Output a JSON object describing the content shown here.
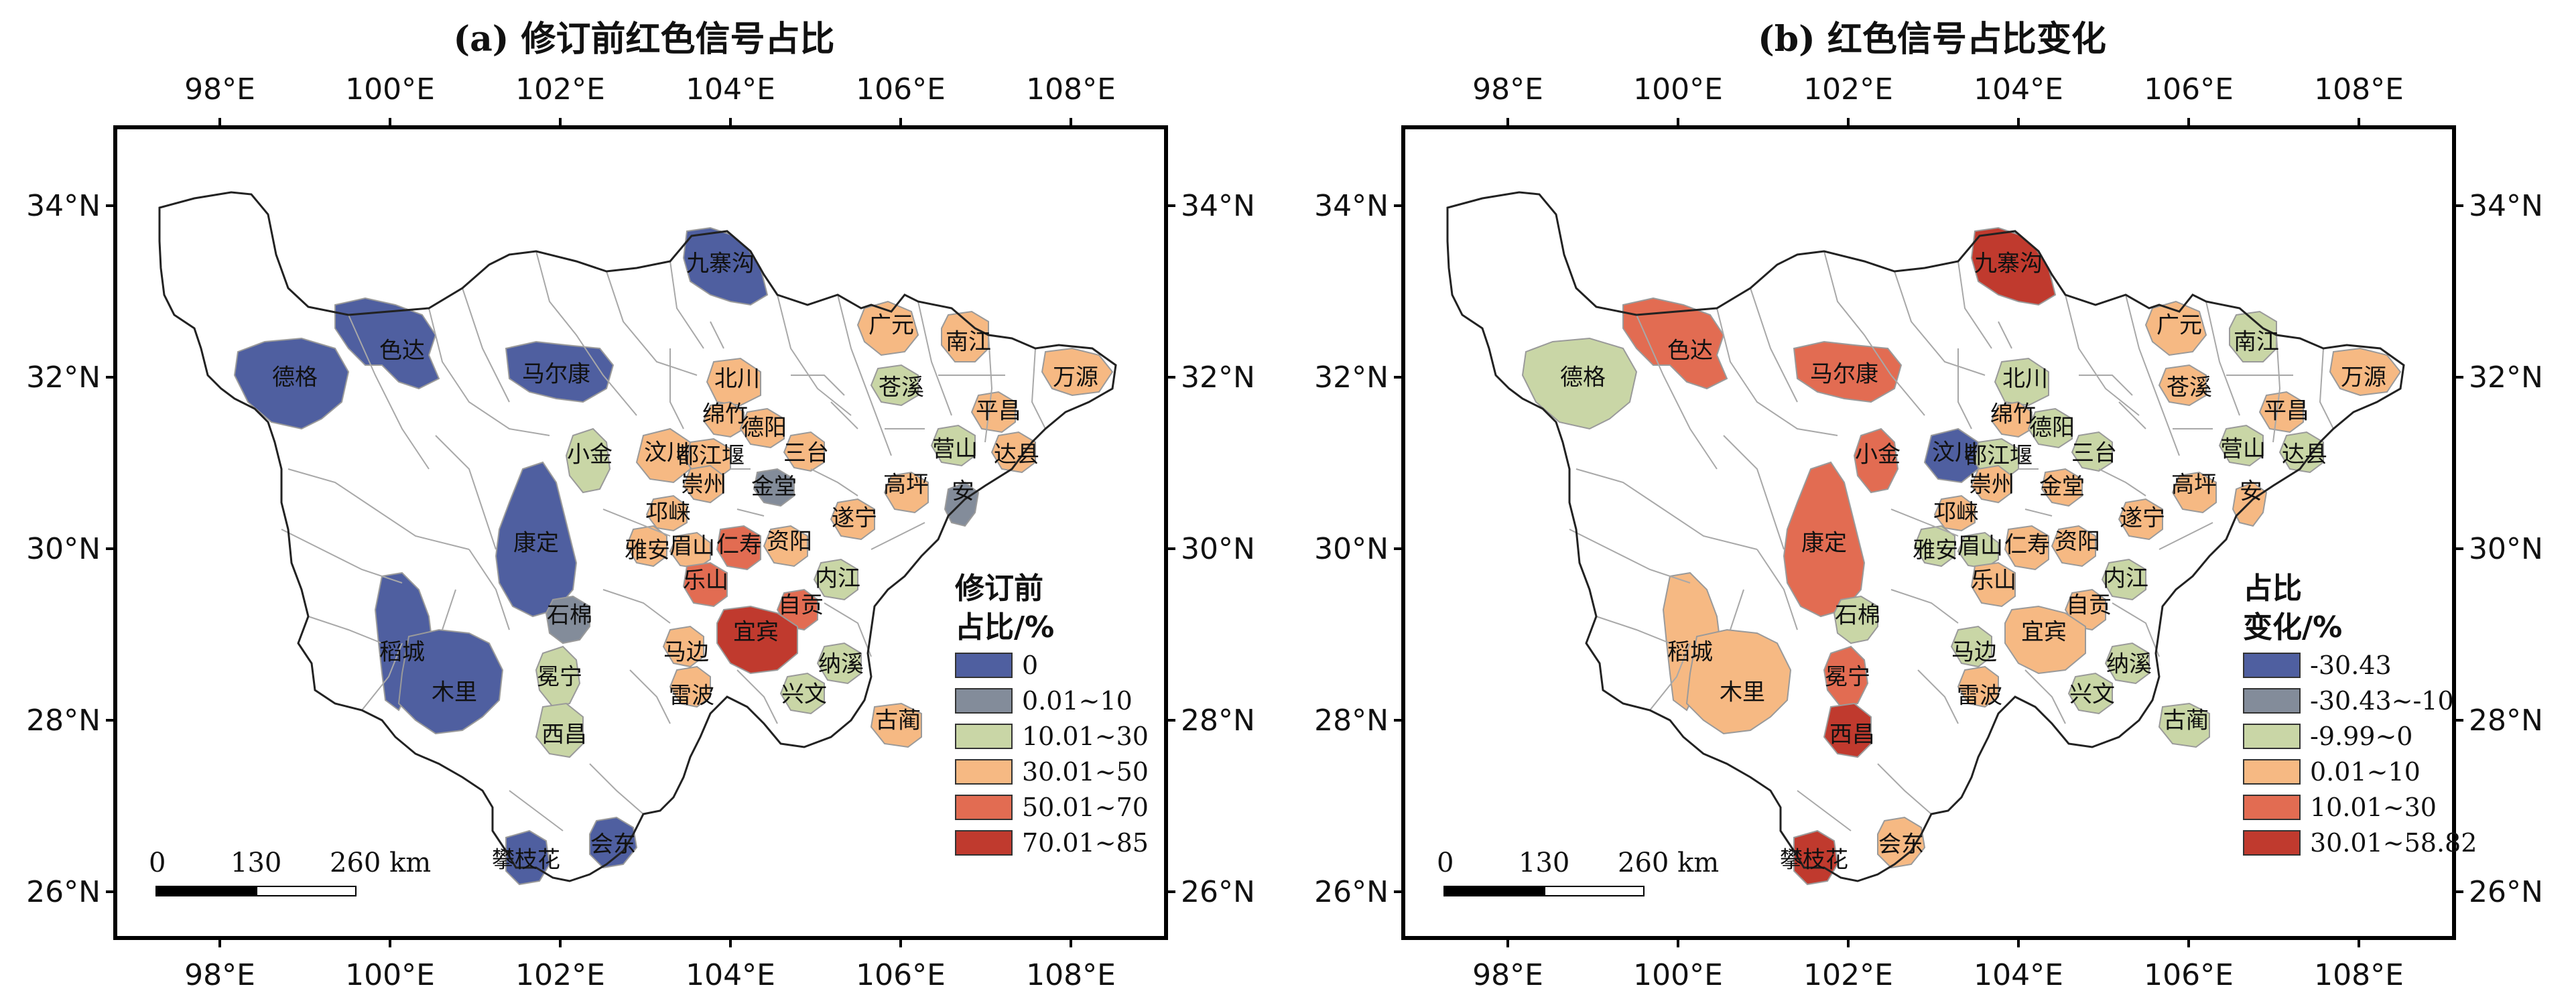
{
  "axis_labels": {
    "lon": [
      "98°E",
      "100°E",
      "102°E",
      "104°E",
      "106°E",
      "108°E"
    ],
    "lat": [
      "34°N",
      "32°N",
      "30°N",
      "28°N",
      "26°N"
    ]
  },
  "scalebar": {
    "ticks": [
      "0",
      "130",
      "260 km"
    ]
  },
  "panels": [
    {
      "title": "(a) 修订前红色信号占比",
      "legend": {
        "title_line1": "修订前",
        "title_line2": "占比/%",
        "items": [
          {
            "label": "0",
            "color": "#4f5fa0"
          },
          {
            "label": "0.01~10",
            "color": "#838c9a"
          },
          {
            "label": "10.01~30",
            "color": "#c9d6a6"
          },
          {
            "label": "30.01~50",
            "color": "#f6b983"
          },
          {
            "label": "50.01~70",
            "color": "#e26c52"
          },
          {
            "label": "70.01~85",
            "color": "#c03a2e"
          }
        ]
      },
      "regions": [
        {
          "name": "德格",
          "cls": 0
        },
        {
          "name": "色达",
          "cls": 0
        },
        {
          "name": "马尔康",
          "cls": 0
        },
        {
          "name": "九寨沟",
          "cls": 0
        },
        {
          "name": "康定",
          "cls": 0
        },
        {
          "name": "稻城",
          "cls": 0
        },
        {
          "name": "木里",
          "cls": 0
        },
        {
          "name": "攀枝花",
          "cls": 0
        },
        {
          "name": "会东",
          "cls": 0
        },
        {
          "name": "金堂",
          "cls": 1
        },
        {
          "name": "石棉",
          "cls": 1
        },
        {
          "name": "安",
          "cls": 1
        },
        {
          "name": "小金",
          "cls": 2
        },
        {
          "name": "冕宁",
          "cls": 2
        },
        {
          "name": "苍溪",
          "cls": 2
        },
        {
          "name": "营山",
          "cls": 2
        },
        {
          "name": "内江",
          "cls": 2
        },
        {
          "name": "纳溪",
          "cls": 2
        },
        {
          "name": "兴文",
          "cls": 2
        },
        {
          "name": "西昌",
          "cls": 2
        },
        {
          "name": "广元",
          "cls": 3
        },
        {
          "name": "南江",
          "cls": 3
        },
        {
          "name": "万源",
          "cls": 3
        },
        {
          "name": "平昌",
          "cls": 3
        },
        {
          "name": "达县",
          "cls": 3
        },
        {
          "name": "北川",
          "cls": 3
        },
        {
          "name": "绵竹",
          "cls": 3
        },
        {
          "name": "德阳",
          "cls": 3
        },
        {
          "name": "三台",
          "cls": 3
        },
        {
          "name": "汶川",
          "cls": 3
        },
        {
          "name": "都江堰",
          "cls": 3
        },
        {
          "name": "崇州",
          "cls": 3
        },
        {
          "name": "高坪",
          "cls": 3
        },
        {
          "name": "遂宁",
          "cls": 3
        },
        {
          "name": "邛崃",
          "cls": 3
        },
        {
          "name": "雅安",
          "cls": 3
        },
        {
          "name": "眉山",
          "cls": 3
        },
        {
          "name": "资阳",
          "cls": 3
        },
        {
          "name": "马边",
          "cls": 3
        },
        {
          "name": "雷波",
          "cls": 3
        },
        {
          "name": "古蔺",
          "cls": 3
        },
        {
          "name": "仁寿",
          "cls": 4
        },
        {
          "name": "乐山",
          "cls": 4
        },
        {
          "name": "自贡",
          "cls": 4
        },
        {
          "name": "宜宾",
          "cls": 5
        }
      ]
    },
    {
      "title": "(b) 红色信号占比变化",
      "legend": {
        "title_line1": "占比",
        "title_line2": "变化/%",
        "items": [
          {
            "label": "-30.43",
            "color": "#4f5fa0"
          },
          {
            "label": "-30.43~-10",
            "color": "#838c9a"
          },
          {
            "label": "-9.99~0",
            "color": "#c9d6a6"
          },
          {
            "label": "0.01~10",
            "color": "#f6b983"
          },
          {
            "label": "10.01~30",
            "color": "#e26c52"
          },
          {
            "label": "30.01~58.82",
            "color": "#c03a2e"
          }
        ]
      },
      "regions": [
        {
          "name": "德格",
          "cls": 2
        },
        {
          "name": "色达",
          "cls": 4
        },
        {
          "name": "马尔康",
          "cls": 4
        },
        {
          "name": "九寨沟",
          "cls": 5
        },
        {
          "name": "康定",
          "cls": 4
        },
        {
          "name": "稻城",
          "cls": 3
        },
        {
          "name": "木里",
          "cls": 3
        },
        {
          "name": "攀枝花",
          "cls": 5
        },
        {
          "name": "会东",
          "cls": 3
        },
        {
          "name": "金堂",
          "cls": 3
        },
        {
          "name": "石棉",
          "cls": 2
        },
        {
          "name": "安",
          "cls": 3
        },
        {
          "name": "小金",
          "cls": 4
        },
        {
          "name": "冕宁",
          "cls": 4
        },
        {
          "name": "苍溪",
          "cls": 3
        },
        {
          "name": "营山",
          "cls": 2
        },
        {
          "name": "内江",
          "cls": 2
        },
        {
          "name": "纳溪",
          "cls": 2
        },
        {
          "name": "兴文",
          "cls": 2
        },
        {
          "name": "西昌",
          "cls": 5
        },
        {
          "name": "广元",
          "cls": 3
        },
        {
          "name": "南江",
          "cls": 2
        },
        {
          "name": "万源",
          "cls": 3
        },
        {
          "name": "平昌",
          "cls": 3
        },
        {
          "name": "达县",
          "cls": 2
        },
        {
          "name": "北川",
          "cls": 2
        },
        {
          "name": "绵竹",
          "cls": 3
        },
        {
          "name": "德阳",
          "cls": 2
        },
        {
          "name": "三台",
          "cls": 2
        },
        {
          "name": "汶川",
          "cls": 0
        },
        {
          "name": "都江堰",
          "cls": 2
        },
        {
          "name": "崇州",
          "cls": 3
        },
        {
          "name": "高坪",
          "cls": 3
        },
        {
          "name": "遂宁",
          "cls": 3
        },
        {
          "name": "邛崃",
          "cls": 3
        },
        {
          "name": "雅安",
          "cls": 2
        },
        {
          "name": "眉山",
          "cls": 2
        },
        {
          "name": "资阳",
          "cls": 3
        },
        {
          "name": "马边",
          "cls": 2
        },
        {
          "name": "雷波",
          "cls": 3
        },
        {
          "name": "古蔺",
          "cls": 2
        },
        {
          "name": "仁寿",
          "cls": 3
        },
        {
          "name": "乐山",
          "cls": 3
        },
        {
          "name": "自贡",
          "cls": 3
        },
        {
          "name": "宜宾",
          "cls": 3
        }
      ]
    }
  ]
}
